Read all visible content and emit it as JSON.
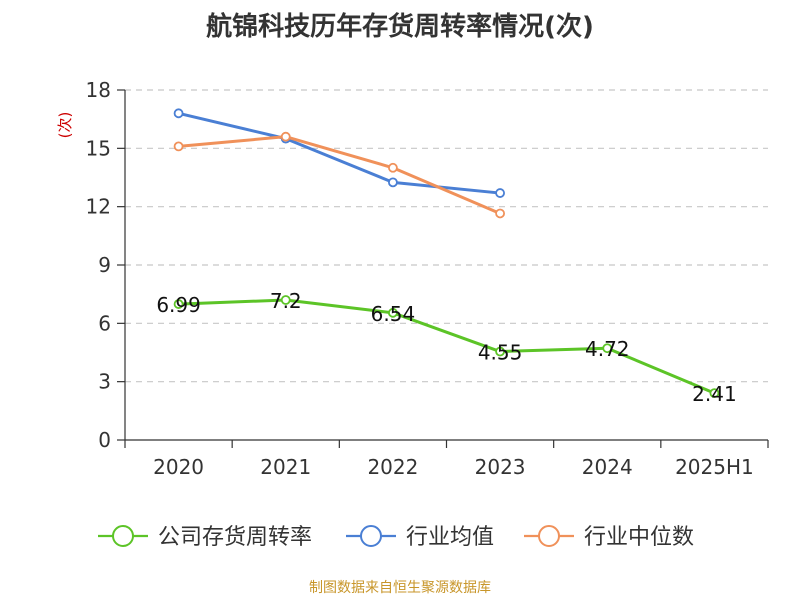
{
  "chart_data": {
    "type": "line",
    "title": "航锦科技历年存货周转率情况(次)",
    "ylabel": "(次)",
    "categories": [
      "2020",
      "2021",
      "2022",
      "2023",
      "2024",
      "2025H1"
    ],
    "ylim": [
      0,
      18
    ],
    "yticks": [
      0,
      3,
      6,
      9,
      12,
      15,
      18
    ],
    "grid": "horizontal-dashed",
    "legend_position": "bottom",
    "series": [
      {
        "name": "公司存货周转率",
        "color": "#5cc427",
        "values": [
          6.99,
          7.2,
          6.54,
          4.55,
          4.72,
          2.41
        ],
        "labels": [
          "6.99",
          "7.2",
          "6.54",
          "4.55",
          "4.72",
          "2.41"
        ]
      },
      {
        "name": "行业均值",
        "color": "#4a7fd4",
        "values": [
          16.8,
          15.5,
          13.25,
          12.7,
          null,
          null
        ]
      },
      {
        "name": "行业中位数",
        "color": "#f0915a",
        "values": [
          15.1,
          15.6,
          14.0,
          11.65,
          null,
          null
        ]
      }
    ]
  },
  "source_note": "制图数据来自恒生聚源数据库"
}
